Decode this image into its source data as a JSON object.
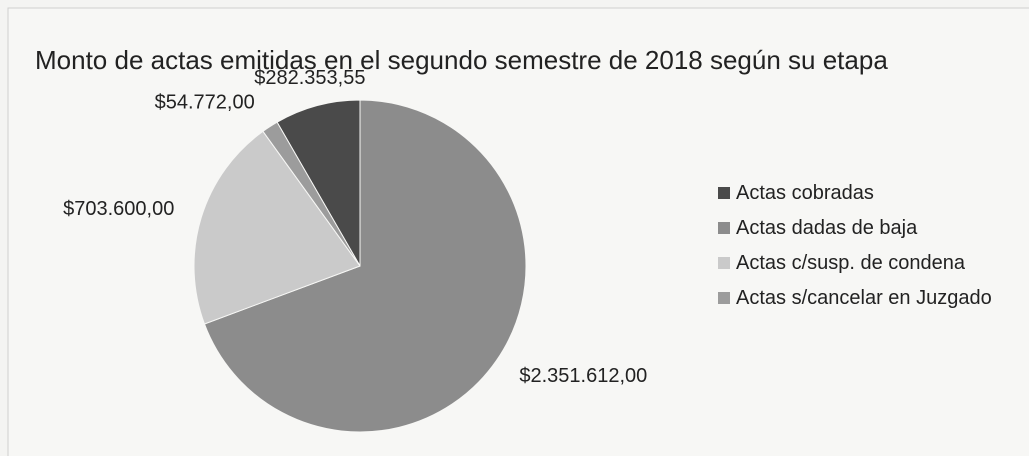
{
  "chart_data": {
    "type": "pie",
    "title": "Monto de actas emitidas en el segundo semestre de 2018 según su etapa",
    "categories": [
      "Actas cobradas",
      "Actas dadas de baja",
      "Actas c/susp. de condena",
      "Actas s/cancelar en Juzgado"
    ],
    "values": [
      282353.55,
      2351612.0,
      703600.0,
      54772.0
    ],
    "value_labels": [
      "$282.353,55",
      "$2.351.612,00",
      "$703.600,00",
      "$54.772,00"
    ],
    "colors": [
      "#4a4a4a",
      "#8c8c8c",
      "#cacaca",
      "#9c9c9c"
    ],
    "legend": "right"
  }
}
